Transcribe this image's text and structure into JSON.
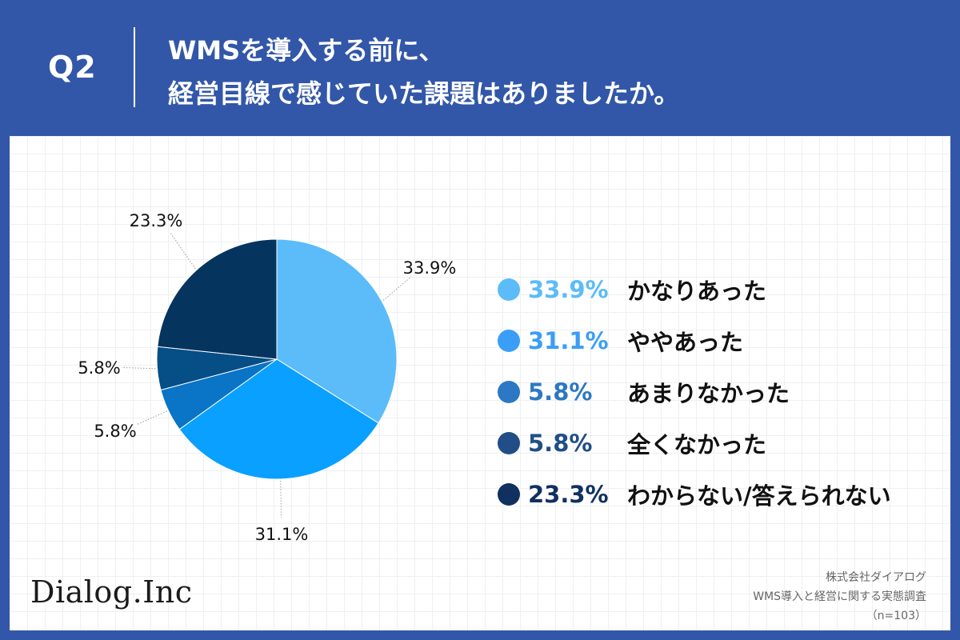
{
  "header": {
    "q_label": "Q2",
    "title_line1": "WMSを導入する前に、",
    "title_line2": "経営目線で感じていた課題はありましたか。"
  },
  "chart_data": {
    "type": "pie",
    "title": "WMSを導入する前に、経営目線で感じていた課題はありましたか。",
    "slices": [
      {
        "label": "かなりあった",
        "value": 33.9,
        "value_label": "33.9%",
        "color": "#5bbcf9",
        "legend_color": "#5bbcf9"
      },
      {
        "label": "ややあった",
        "value": 31.1,
        "value_label": "31.1%",
        "color": "#0aa0ff",
        "legend_color": "#3a9ef6"
      },
      {
        "label": "あまりなかった",
        "value": 5.8,
        "value_label": "5.8%",
        "color": "#0a74c6",
        "legend_color": "#2c78c2"
      },
      {
        "label": "全くなかった",
        "value": 5.8,
        "value_label": "5.8%",
        "color": "#064e86",
        "legend_color": "#214e86"
      },
      {
        "label": "わからない/答えられない",
        "value": 23.3,
        "value_label": "23.3%",
        "color": "#05345f",
        "legend_color": "#10305f"
      }
    ],
    "start": "top",
    "direction": "clockwise",
    "legend_position": "right"
  },
  "footer": {
    "logo_text": "Dialog.Inc",
    "source_company": "株式会社ダイアログ",
    "source_survey": "WMS導入と経営に関する実態調査",
    "source_n": "（n=103）"
  }
}
